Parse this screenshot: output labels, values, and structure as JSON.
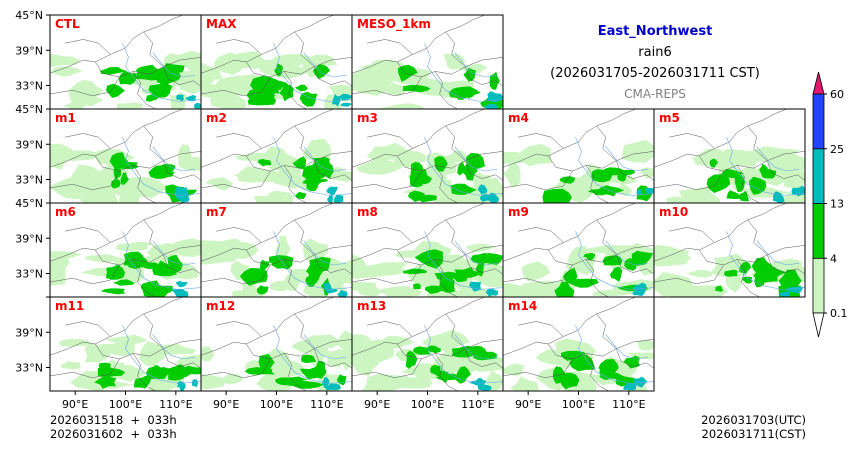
{
  "chart_data": {
    "type": "heatmap",
    "subtype": "ensemble precipitation maps (filled contour over land)",
    "title": "East_Northwest",
    "variable": "rain6",
    "period": "(2026031705-2026031711 CST)",
    "system": "CMA-REPS",
    "panels": [
      {
        "label": "CTL",
        "intensity": 0.85
      },
      {
        "label": "MAX",
        "intensity": 1.0
      },
      {
        "label": "MESO_1km",
        "intensity": 0.55
      },
      {
        "label": "m1",
        "intensity": 0.8
      },
      {
        "label": "m2",
        "intensity": 0.85
      },
      {
        "label": "m3",
        "intensity": 0.9
      },
      {
        "label": "m4",
        "intensity": 0.7
      },
      {
        "label": "m5",
        "intensity": 0.75
      },
      {
        "label": "m6",
        "intensity": 0.8
      },
      {
        "label": "m7",
        "intensity": 0.75
      },
      {
        "label": "m8",
        "intensity": 0.95
      },
      {
        "label": "m9",
        "intensity": 0.7
      },
      {
        "label": "m10",
        "intensity": 0.85
      },
      {
        "label": "m11",
        "intensity": 0.8
      },
      {
        "label": "m12",
        "intensity": 0.85
      },
      {
        "label": "m13",
        "intensity": 0.8
      },
      {
        "label": "m14",
        "intensity": 0.7
      }
    ],
    "lon_ticks": [
      "90°E",
      "100°E",
      "110°E"
    ],
    "lat_ticks": [
      "45°N",
      "39°N",
      "33°N"
    ],
    "lon_range": [
      85,
      115
    ],
    "lat_range": [
      29,
      45
    ],
    "colorbar": {
      "levels": [
        0.1,
        4,
        13,
        25,
        60
      ],
      "labels": [
        "0.1",
        "4",
        "13",
        "25",
        "60"
      ],
      "colors": [
        "#ffffff",
        "#ccf5c2",
        "#00cc00",
        "#00bcbc",
        "#2244ff",
        "#e0186e"
      ],
      "extend": "both"
    },
    "footer_left": [
      "2026031518  +  033h",
      "2026031602  +  033h"
    ],
    "footer_right": [
      "2026031703(UTC)",
      "2026031711(CST)"
    ]
  }
}
